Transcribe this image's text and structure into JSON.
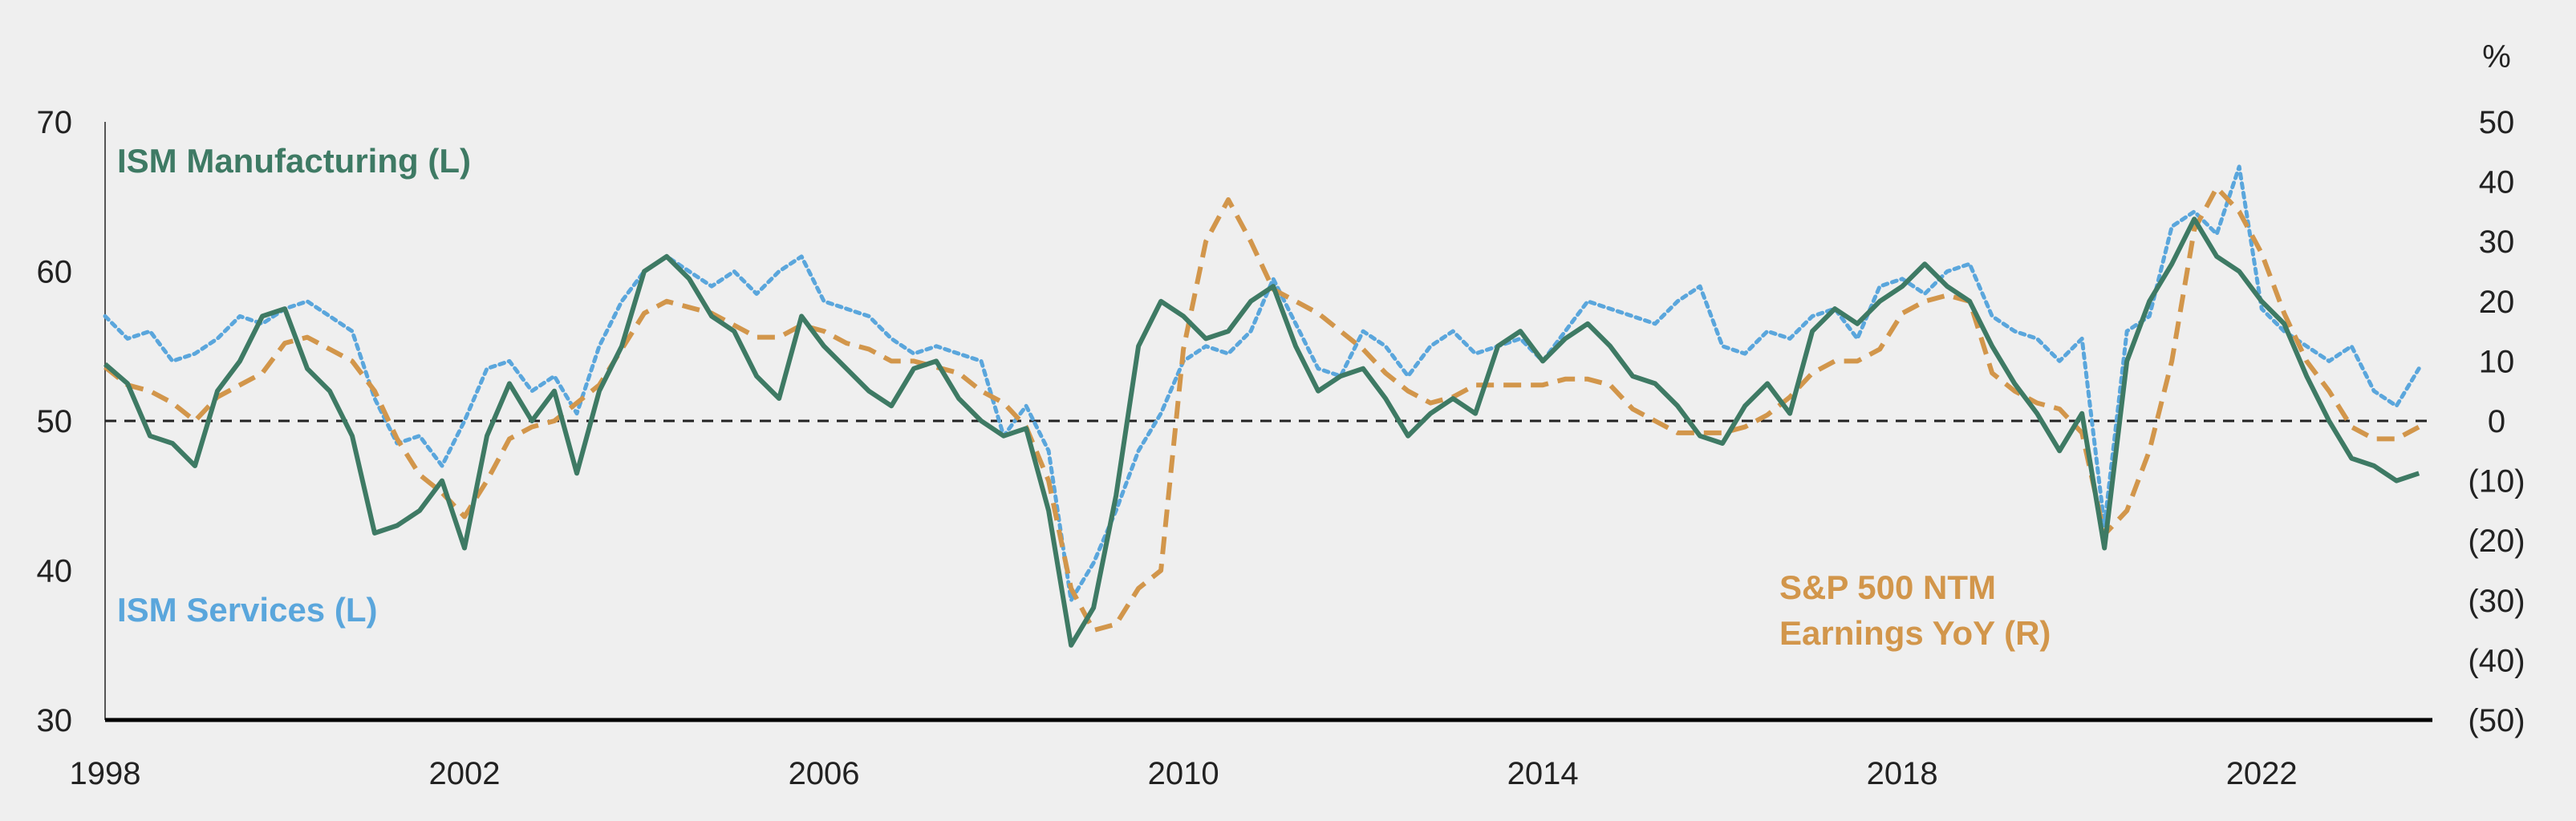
{
  "chart_data": {
    "type": "line",
    "left_axis": {
      "ylim": [
        30,
        70
      ],
      "ticks": [
        "30",
        "40",
        "50",
        "60",
        "70"
      ]
    },
    "right_axis": {
      "ylim": [
        -50,
        50
      ],
      "unit": "%",
      "ticks": [
        "(50)",
        "(40)",
        "(30)",
        "(20)",
        "(10)",
        "0",
        "10",
        "20",
        "30",
        "40",
        "50"
      ]
    },
    "x_axis": {
      "xlim": [
        1998,
        2023.9
      ],
      "ticks": [
        "1998",
        "2002",
        "2006",
        "2010",
        "2014",
        "2018",
        "2022"
      ]
    },
    "reference_line": {
      "axis": "left",
      "value": 50
    },
    "series": [
      {
        "name": "ISM Manufacturing (L)",
        "axis": "left",
        "color": "#3e7a64",
        "style": "solid",
        "x": [
          1998.0,
          1998.25,
          1998.5,
          1998.75,
          1999.0,
          1999.25,
          1999.5,
          1999.75,
          2000.0,
          2000.25,
          2000.5,
          2000.75,
          2001.0,
          2001.25,
          2001.5,
          2001.75,
          2002.0,
          2002.25,
          2002.5,
          2002.75,
          2003.0,
          2003.25,
          2003.5,
          2003.75,
          2004.0,
          2004.25,
          2004.5,
          2004.75,
          2005.0,
          2005.25,
          2005.5,
          2005.75,
          2006.0,
          2006.25,
          2006.5,
          2006.75,
          2007.0,
          2007.25,
          2007.5,
          2007.75,
          2008.0,
          2008.25,
          2008.5,
          2008.75,
          2009.0,
          2009.25,
          2009.5,
          2009.75,
          2010.0,
          2010.25,
          2010.5,
          2010.75,
          2011.0,
          2011.25,
          2011.5,
          2011.75,
          2012.0,
          2012.25,
          2012.5,
          2012.75,
          2013.0,
          2013.25,
          2013.5,
          2013.75,
          2014.0,
          2014.25,
          2014.5,
          2014.75,
          2015.0,
          2015.25,
          2015.5,
          2015.75,
          2016.0,
          2016.25,
          2016.5,
          2016.75,
          2017.0,
          2017.25,
          2017.5,
          2017.75,
          2018.0,
          2018.25,
          2018.5,
          2018.75,
          2019.0,
          2019.25,
          2019.5,
          2019.75,
          2020.0,
          2020.25,
          2020.5,
          2020.75,
          2021.0,
          2021.25,
          2021.5,
          2021.75,
          2022.0,
          2022.25,
          2022.5,
          2022.75,
          2023.0,
          2023.25,
          2023.5,
          2023.75
        ],
        "values": [
          53.8,
          52.5,
          49.0,
          48.5,
          47.0,
          52.0,
          54.0,
          57.0,
          57.5,
          53.5,
          52.0,
          49.0,
          42.5,
          43.0,
          44.0,
          46.0,
          41.5,
          49.0,
          52.5,
          50.0,
          52.0,
          46.5,
          52.0,
          55.0,
          60.0,
          61.0,
          59.5,
          57.0,
          56.0,
          53.0,
          51.5,
          57.0,
          55.0,
          53.5,
          52.0,
          51.0,
          53.5,
          54.0,
          51.5,
          50.0,
          49.0,
          49.5,
          44.0,
          35.0,
          37.5,
          45.0,
          55.0,
          58.0,
          57.0,
          55.5,
          56.0,
          58.0,
          59.0,
          55.0,
          52.0,
          53.0,
          53.5,
          51.5,
          49.0,
          50.5,
          51.5,
          50.5,
          55.0,
          56.0,
          54.0,
          55.5,
          56.5,
          55.0,
          53.0,
          52.5,
          51.0,
          49.0,
          48.5,
          51.0,
          52.5,
          50.5,
          56.0,
          57.5,
          56.5,
          58.0,
          59.0,
          60.5,
          59.0,
          58.0,
          55.0,
          52.5,
          50.5,
          48.0,
          50.5,
          41.5,
          54.0,
          58.0,
          60.5,
          63.5,
          61.0,
          60.0,
          58.0,
          56.5,
          53.0,
          50.0,
          47.5,
          47.0,
          46.0,
          46.5
        ]
      },
      {
        "name": "ISM Services (L)",
        "axis": "left",
        "color": "#5aa6dc",
        "style": "dotted",
        "x": [
          1998.0,
          1998.25,
          1998.5,
          1998.75,
          1999.0,
          1999.25,
          1999.5,
          1999.75,
          2000.0,
          2000.25,
          2000.5,
          2000.75,
          2001.0,
          2001.25,
          2001.5,
          2001.75,
          2002.0,
          2002.25,
          2002.5,
          2002.75,
          2003.0,
          2003.25,
          2003.5,
          2003.75,
          2004.0,
          2004.25,
          2004.5,
          2004.75,
          2005.0,
          2005.25,
          2005.5,
          2005.75,
          2006.0,
          2006.25,
          2006.5,
          2006.75,
          2007.0,
          2007.25,
          2007.5,
          2007.75,
          2008.0,
          2008.25,
          2008.5,
          2008.75,
          2009.0,
          2009.25,
          2009.5,
          2009.75,
          2010.0,
          2010.25,
          2010.5,
          2010.75,
          2011.0,
          2011.25,
          2011.5,
          2011.75,
          2012.0,
          2012.25,
          2012.5,
          2012.75,
          2013.0,
          2013.25,
          2013.5,
          2013.75,
          2014.0,
          2014.25,
          2014.5,
          2014.75,
          2015.0,
          2015.25,
          2015.5,
          2015.75,
          2016.0,
          2016.25,
          2016.5,
          2016.75,
          2017.0,
          2017.25,
          2017.5,
          2017.75,
          2018.0,
          2018.25,
          2018.5,
          2018.75,
          2019.0,
          2019.25,
          2019.5,
          2019.75,
          2020.0,
          2020.25,
          2020.5,
          2020.75,
          2021.0,
          2021.25,
          2021.5,
          2021.75,
          2022.0,
          2022.25,
          2022.5,
          2022.75,
          2023.0,
          2023.25,
          2023.5,
          2023.75
        ],
        "values": [
          57.0,
          55.5,
          56.0,
          54.0,
          54.5,
          55.5,
          57.0,
          56.5,
          57.5,
          58.0,
          57.0,
          56.0,
          51.5,
          48.5,
          49.0,
          47.0,
          50.0,
          53.5,
          54.0,
          52.0,
          53.0,
          50.5,
          55.0,
          58.0,
          60.0,
          61.0,
          60.0,
          59.0,
          60.0,
          58.5,
          60.0,
          61.0,
          58.0,
          57.5,
          57.0,
          55.5,
          54.5,
          55.0,
          54.5,
          54.0,
          49.0,
          51.0,
          48.0,
          38.0,
          40.5,
          44.0,
          48.0,
          50.5,
          54.0,
          55.0,
          54.5,
          56.0,
          59.5,
          56.5,
          53.5,
          53.0,
          56.0,
          55.0,
          53.0,
          55.0,
          56.0,
          54.5,
          55.0,
          55.5,
          54.0,
          56.0,
          58.0,
          57.5,
          57.0,
          56.5,
          58.0,
          59.0,
          55.0,
          54.5,
          56.0,
          55.5,
          57.0,
          57.5,
          55.5,
          59.0,
          59.5,
          58.5,
          60.0,
          60.5,
          57.0,
          56.0,
          55.5,
          54.0,
          55.5,
          43.0,
          56.0,
          57.0,
          63.0,
          64.0,
          62.5,
          67.0,
          57.5,
          56.0,
          55.0,
          54.0,
          55.0,
          52.0,
          51.0,
          53.5
        ]
      },
      {
        "name": "S&P 500 NTM Earnings YoY (R)",
        "axis": "right",
        "color": "#d2964b",
        "style": "dashed",
        "x": [
          1998.0,
          1998.25,
          1998.5,
          1998.75,
          1999.0,
          1999.25,
          1999.5,
          1999.75,
          2000.0,
          2000.25,
          2000.5,
          2000.75,
          2001.0,
          2001.25,
          2001.5,
          2001.75,
          2002.0,
          2002.25,
          2002.5,
          2002.75,
          2003.0,
          2003.25,
          2003.5,
          2003.75,
          2004.0,
          2004.25,
          2004.5,
          2004.75,
          2005.0,
          2005.25,
          2005.5,
          2005.75,
          2006.0,
          2006.25,
          2006.5,
          2006.75,
          2007.0,
          2007.25,
          2007.5,
          2007.75,
          2008.0,
          2008.25,
          2008.5,
          2008.75,
          2009.0,
          2009.25,
          2009.5,
          2009.75,
          2010.0,
          2010.25,
          2010.5,
          2010.75,
          2011.0,
          2011.25,
          2011.5,
          2011.75,
          2012.0,
          2012.25,
          2012.5,
          2012.75,
          2013.0,
          2013.25,
          2013.5,
          2013.75,
          2014.0,
          2014.25,
          2014.5,
          2014.75,
          2015.0,
          2015.25,
          2015.5,
          2015.75,
          2016.0,
          2016.25,
          2016.5,
          2016.75,
          2017.0,
          2017.25,
          2017.5,
          2017.75,
          2018.0,
          2018.25,
          2018.5,
          2018.75,
          2019.0,
          2019.25,
          2019.5,
          2019.75,
          2020.0,
          2020.25,
          2020.5,
          2020.75,
          2021.0,
          2021.25,
          2021.5,
          2021.75,
          2022.0,
          2022.25,
          2022.5,
          2022.75,
          2023.0,
          2023.25,
          2023.5,
          2023.75
        ],
        "values": [
          9,
          6,
          5,
          3,
          0,
          4,
          6,
          8,
          13,
          14,
          12,
          10,
          5,
          -3,
          -9,
          -12,
          -16,
          -10,
          -3,
          -1,
          0,
          3,
          6,
          12,
          18,
          20,
          19,
          18,
          16,
          14,
          14,
          16,
          15,
          13,
          12,
          10,
          10,
          9,
          8,
          5,
          3,
          -1,
          -10,
          -28,
          -35,
          -34,
          -28,
          -25,
          12,
          30,
          37,
          30,
          22,
          20,
          18,
          15,
          12,
          8,
          5,
          3,
          4,
          6,
          6,
          6,
          6,
          7,
          7,
          6,
          2,
          0,
          -2,
          -2,
          -2,
          -1,
          1,
          4,
          8,
          10,
          10,
          12,
          18,
          20,
          21,
          20,
          8,
          5,
          3,
          2,
          -2,
          -19,
          -15,
          -5,
          10,
          32,
          39,
          35,
          28,
          18,
          10,
          5,
          -1,
          -3,
          -3,
          -1
        ]
      }
    ],
    "labels": {
      "ism_manufacturing": "ISM Manufacturing (L)",
      "ism_services": "ISM Services (L)",
      "sp500_line1": "S&P 500 NTM",
      "sp500_line2": "Earnings YoY (R)"
    },
    "grid": false
  }
}
